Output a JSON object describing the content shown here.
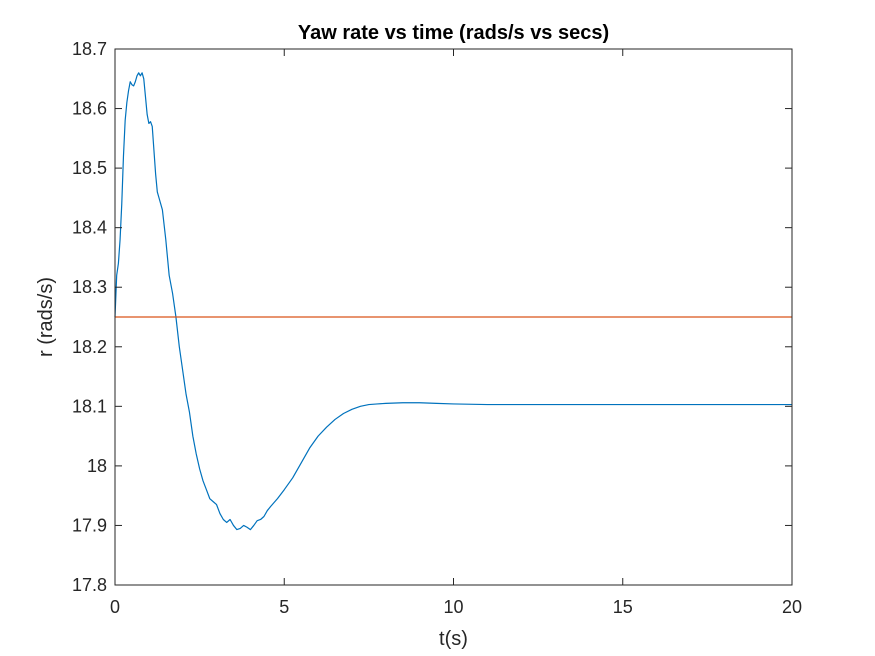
{
  "chart_data": {
    "type": "line",
    "title": "Yaw rate vs time (rads/s vs secs)",
    "xlabel": "t(s)",
    "ylabel": "r (rads/s)",
    "xlim": [
      0,
      20
    ],
    "ylim": [
      17.8,
      18.7
    ],
    "xticks": [
      0,
      5,
      10,
      15,
      20
    ],
    "xtick_labels": [
      "0",
      "5",
      "10",
      "15",
      "20"
    ],
    "yticks": [
      17.8,
      17.9,
      18.0,
      18.1,
      18.2,
      18.3,
      18.4,
      18.5,
      18.6,
      18.7
    ],
    "ytick_labels": [
      "17.8",
      "17.9",
      "18",
      "18.1",
      "18.2",
      "18.3",
      "18.4",
      "18.5",
      "18.6",
      "18.7"
    ],
    "grid": false,
    "box": true,
    "series": [
      {
        "color": "#0072BD",
        "x": [
          0,
          0.05,
          0.1,
          0.15,
          0.2,
          0.25,
          0.3,
          0.35,
          0.4,
          0.45,
          0.5,
          0.55,
          0.6,
          0.65,
          0.7,
          0.75,
          0.8,
          0.85,
          0.9,
          0.95,
          1.0,
          1.05,
          1.1,
          1.15,
          1.2,
          1.25,
          1.3,
          1.4,
          1.5,
          1.6,
          1.7,
          1.8,
          1.9,
          2.0,
          2.1,
          2.2,
          2.3,
          2.4,
          2.5,
          2.6,
          2.7,
          2.8,
          2.9,
          3.0,
          3.1,
          3.2,
          3.3,
          3.4,
          3.5,
          3.6,
          3.7,
          3.8,
          3.9,
          4.0,
          4.1,
          4.2,
          4.3,
          4.4,
          4.5,
          4.6,
          4.8,
          5.0,
          5.25,
          5.5,
          5.75,
          6.0,
          6.25,
          6.5,
          6.75,
          7.0,
          7.25,
          7.5,
          7.75,
          8.0,
          8.5,
          9.0,
          9.5,
          10,
          11,
          12,
          13,
          14,
          15,
          16,
          17,
          18,
          19,
          20
        ],
        "y": [
          18.25,
          18.32,
          18.34,
          18.38,
          18.44,
          18.52,
          18.58,
          18.61,
          18.63,
          18.645,
          18.64,
          18.638,
          18.645,
          18.655,
          18.66,
          18.655,
          18.66,
          18.65,
          18.62,
          18.59,
          18.575,
          18.578,
          18.57,
          18.53,
          18.49,
          18.46,
          18.45,
          18.43,
          18.38,
          18.32,
          18.29,
          18.25,
          18.2,
          18.16,
          18.12,
          18.09,
          18.05,
          18.02,
          17.995,
          17.975,
          17.96,
          17.945,
          17.94,
          17.935,
          17.92,
          17.91,
          17.905,
          17.91,
          17.9,
          17.893,
          17.895,
          17.9,
          17.897,
          17.893,
          17.9,
          17.908,
          17.91,
          17.915,
          17.925,
          17.932,
          17.945,
          17.96,
          17.98,
          18.005,
          18.03,
          18.05,
          18.065,
          18.078,
          18.088,
          18.095,
          18.1,
          18.103,
          18.104,
          18.105,
          18.106,
          18.106,
          18.105,
          18.104,
          18.103,
          18.103,
          18.103,
          18.103,
          18.103,
          18.103,
          18.103,
          18.103,
          18.103,
          18.103
        ]
      },
      {
        "color": "#D95319",
        "x": [
          0,
          20
        ],
        "y": [
          18.25,
          18.25
        ]
      }
    ]
  }
}
